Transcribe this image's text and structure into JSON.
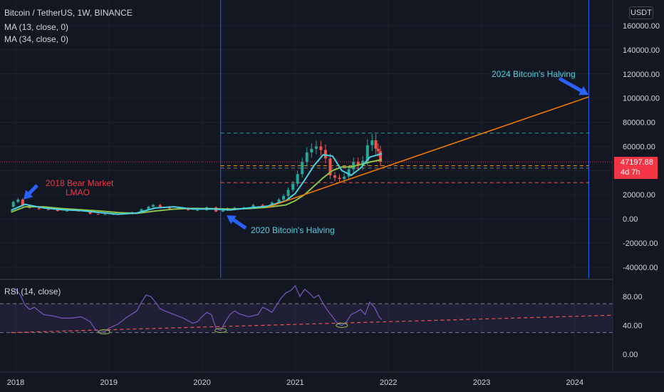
{
  "header": {
    "symbol": "Bitcoin / TetherUS, 1W, BINANCE",
    "ma13": "MA (13, close, 0)",
    "ma34": "MA (34, close, 0)",
    "currency": "USDT",
    "rsi_label": "RSI (14, close)"
  },
  "last_price": {
    "value": "47197.88",
    "countdown": "4d 7h"
  },
  "annotations": {
    "bear": [
      "2018 Bear Market",
      "LMAO"
    ],
    "halving2020": "2020 Bitcoin's Halving",
    "halving2024": "2024 Bitcoin's Halving"
  },
  "colors": {
    "bg": "#131722",
    "grid": "#1e222d",
    "up": "#26a69a",
    "down": "#ef5350",
    "ma13": "#4dd0e1",
    "ma34": "#8bc34a",
    "rsi": "#7e57c2",
    "trend": "#f57c00",
    "halving": "#2962ff",
    "arrow": "#2962ff",
    "bear_text": "#f23645",
    "halving_text": "#4dd0e1"
  },
  "chart_data": [
    {
      "type": "line",
      "title": "Bitcoin / TetherUS, 1W, BINANCE",
      "x_ticks": [
        "2018",
        "2019",
        "2020",
        "2021",
        "2022",
        "2023",
        "2024"
      ],
      "y_ticks": [
        "-40000.00",
        "-20000.00",
        "0.00",
        "20000.00",
        "40000.00",
        "60000.00",
        "80000.00",
        "100000.00",
        "120000.00",
        "140000.00",
        "160000.00"
      ],
      "ylim": [
        -45000,
        180000
      ],
      "last_price": 47197.88,
      "series": [
        {
          "name": "Price",
          "x": [
            2017.95,
            2018.0,
            2018.05,
            2018.1,
            2018.2,
            2018.3,
            2018.4,
            2018.5,
            2018.6,
            2018.75,
            2018.85,
            2018.92,
            2019.0,
            2019.1,
            2019.2,
            2019.3,
            2019.4,
            2019.45,
            2019.5,
            2019.6,
            2019.7,
            2019.8,
            2019.9,
            2020.0,
            2020.1,
            2020.2,
            2020.25,
            2020.3,
            2020.4,
            2020.5,
            2020.6,
            2020.7,
            2020.8,
            2020.85,
            2020.9,
            2020.95,
            2021.0,
            2021.05,
            2021.1,
            2021.15,
            2021.2,
            2021.25,
            2021.3,
            2021.35,
            2021.4,
            2021.45,
            2021.5,
            2021.55,
            2021.6,
            2021.65,
            2021.7,
            2021.75,
            2021.8,
            2021.85,
            2021.88,
            2021.9,
            2021.93
          ],
          "values": [
            10000,
            14000,
            16000,
            11000,
            9000,
            8000,
            7500,
            6500,
            6700,
            6500,
            4000,
            3600,
            3700,
            3800,
            4000,
            5500,
            8000,
            10000,
            11500,
            10000,
            8500,
            9000,
            7200,
            7200,
            9500,
            6000,
            7000,
            8800,
            9200,
            9300,
            11500,
            10800,
            13500,
            16000,
            19000,
            24000,
            29000,
            37000,
            47000,
            55000,
            58000,
            60000,
            57000,
            50000,
            36000,
            34000,
            33000,
            35000,
            41000,
            47000,
            44000,
            48000,
            61000,
            65000,
            58000,
            56000,
            47197.88
          ]
        },
        {
          "name": "MA (13, close, 0)",
          "x": [
            2017.95,
            2018.1,
            2018.3,
            2018.5,
            2018.7,
            2018.9,
            2019.1,
            2019.3,
            2019.5,
            2019.7,
            2019.9,
            2020.1,
            2020.3,
            2020.5,
            2020.7,
            2020.9,
            2021.0,
            2021.1,
            2021.2,
            2021.3,
            2021.4,
            2021.5,
            2021.6,
            2021.7,
            2021.8,
            2021.93
          ],
          "values": [
            7000,
            12000,
            9000,
            7500,
            6800,
            5200,
            3800,
            4800,
            9000,
            10000,
            8000,
            8200,
            7300,
            9000,
            10500,
            15000,
            21000,
            32000,
            44000,
            53000,
            52000,
            40000,
            36000,
            42000,
            51000,
            54000
          ]
        },
        {
          "name": "MA (34, close, 0)",
          "x": [
            2017.95,
            2018.1,
            2018.3,
            2018.5,
            2018.7,
            2018.9,
            2019.1,
            2019.3,
            2019.5,
            2019.7,
            2019.9,
            2020.1,
            2020.3,
            2020.5,
            2020.7,
            2020.9,
            2021.0,
            2021.1,
            2021.2,
            2021.3,
            2021.4,
            2021.5,
            2021.6,
            2021.7,
            2021.8,
            2021.93
          ],
          "values": [
            5500,
            10000,
            10000,
            8500,
            7500,
            6500,
            5200,
            4500,
            6500,
            8000,
            8600,
            8400,
            8000,
            8500,
            9500,
            11500,
            15000,
            20000,
            27000,
            34000,
            40000,
            43000,
            43000,
            45000,
            47000,
            49000
          ]
        }
      ],
      "levels": [
        {
          "value": 71000,
          "style": "dashed",
          "color": "#26a69a"
        },
        {
          "value": 44000,
          "style": "dashed",
          "color": "#ff9800"
        },
        {
          "value": 42000,
          "style": "dashed",
          "color": "#787b86"
        },
        {
          "value": 30000,
          "style": "dashed",
          "color": "#ef5350"
        }
      ],
      "trendline": {
        "x": [
          2020.7,
          2024.15
        ],
        "values": [
          9500,
          101000
        ]
      },
      "halving_lines": [
        2020.2,
        2024.15
      ]
    },
    {
      "type": "line",
      "title": "RSI (14, close)",
      "y_ticks": [
        "0.00",
        "40.00",
        "80.00"
      ],
      "ylim": [
        -15,
        100
      ],
      "band": [
        30,
        70
      ],
      "series": [
        {
          "name": "RSI (14, close)",
          "x": [
            2017.95,
            2018.0,
            2018.05,
            2018.1,
            2018.15,
            2018.2,
            2018.3,
            2018.4,
            2018.5,
            2018.6,
            2018.7,
            2018.8,
            2018.85,
            2018.9,
            2018.95,
            2019.0,
            2019.1,
            2019.2,
            2019.3,
            2019.35,
            2019.4,
            2019.45,
            2019.5,
            2019.55,
            2019.6,
            2019.7,
            2019.8,
            2019.9,
            2019.95,
            2020.0,
            2020.05,
            2020.1,
            2020.15,
            2020.2,
            2020.25,
            2020.3,
            2020.35,
            2020.4,
            2020.5,
            2020.6,
            2020.65,
            2020.7,
            2020.75,
            2020.8,
            2020.85,
            2020.9,
            2020.95,
            2021.0,
            2021.05,
            2021.1,
            2021.15,
            2021.2,
            2021.25,
            2021.3,
            2021.35,
            2021.4,
            2021.45,
            2021.5,
            2021.55,
            2021.6,
            2021.65,
            2021.7,
            2021.75,
            2021.8,
            2021.85,
            2021.9,
            2021.93
          ],
          "values": [
            85,
            90,
            82,
            68,
            62,
            65,
            55,
            53,
            50,
            50,
            52,
            45,
            35,
            30,
            31,
            36,
            42,
            52,
            60,
            72,
            82,
            80,
            72,
            63,
            60,
            55,
            50,
            43,
            45,
            52,
            58,
            55,
            36,
            33,
            45,
            55,
            60,
            56,
            52,
            55,
            65,
            62,
            58,
            68,
            78,
            85,
            88,
            95,
            80,
            90,
            85,
            78,
            82,
            70,
            60,
            52,
            43,
            40,
            45,
            55,
            58,
            62,
            55,
            72,
            65,
            52,
            48
          ]
        }
      ],
      "trendline": {
        "x": [
          2017.95,
          2024.4
        ],
        "values": [
          30,
          54
        ]
      }
    }
  ]
}
